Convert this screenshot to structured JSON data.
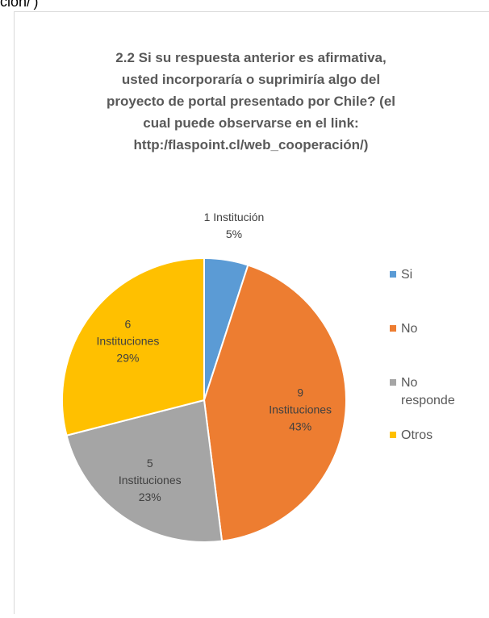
{
  "page_text": "ción/')",
  "chart_data": {
    "type": "pie",
    "title": [
      "2.2 Si su respuesta anterior es afirmativa,",
      "usted incorporaría o suprimiría algo del",
      "proyecto de portal presentado por Chile? (el",
      "cual puede observarse en el link:",
      "http:/flaspoint.cl/web_cooperación/)"
    ],
    "categories": [
      [
        "Si"
      ],
      [
        "No"
      ],
      [
        "No",
        "responde"
      ],
      [
        "Otros"
      ]
    ],
    "values": [
      5,
      43,
      23,
      29
    ],
    "value_labels": [
      [
        "1 Institución",
        "5%"
      ],
      [
        "9",
        "Instituciones",
        "43%"
      ],
      [
        "5",
        "Instituciones",
        "23%"
      ],
      [
        "6",
        "Instituciones",
        "29%"
      ]
    ],
    "colors": [
      "#5b9bd5",
      "#ed7d31",
      "#a5a5a5",
      "#ffc000"
    ],
    "legend": "right"
  }
}
